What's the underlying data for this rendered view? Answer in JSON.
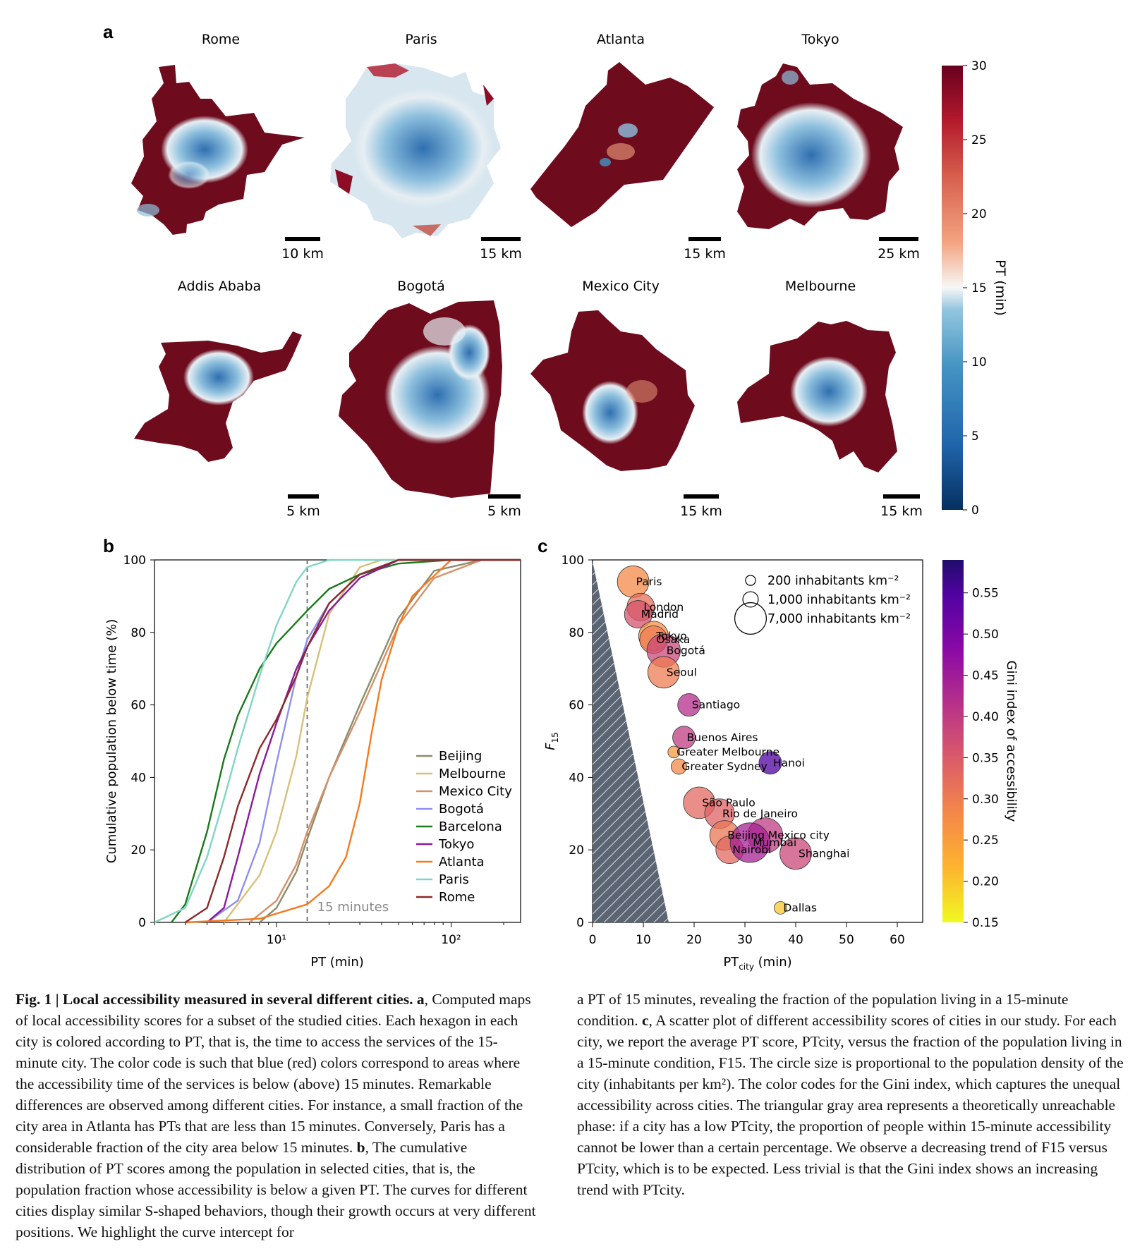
{
  "panel_labels": {
    "a": "a",
    "b": "b",
    "c": "c"
  },
  "panel_a": {
    "cities": [
      {
        "name": "Rome",
        "scale": "10 km"
      },
      {
        "name": "Paris",
        "scale": "15 km"
      },
      {
        "name": "Atlanta",
        "scale": "15 km"
      },
      {
        "name": "Tokyo",
        "scale": "25 km"
      },
      {
        "name": "Addis Ababa",
        "scale": "5 km"
      },
      {
        "name": "Bogotá",
        "scale": "5 km"
      },
      {
        "name": "Mexico City",
        "scale": "15 km"
      },
      {
        "name": "Melbourne",
        "scale": "15 km"
      }
    ],
    "colorbar": {
      "label": "PT (min)",
      "ticks": [
        "0",
        "5",
        "10",
        "15",
        "20",
        "25",
        "30"
      ],
      "range": [
        0,
        30
      ]
    }
  },
  "chart_data": [
    {
      "type": "line",
      "xlabel": "PT (min)",
      "ylabel": "Cumulative population below time (%)",
      "x_scale": "log",
      "xlim": [
        2,
        250
      ],
      "ylim": [
        0,
        100
      ],
      "xticks": [
        "10¹",
        "10²"
      ],
      "yticks": [
        "0",
        "20",
        "40",
        "60",
        "80",
        "100"
      ],
      "marker_line": {
        "x": 15,
        "label": "15 minutes"
      },
      "legend_position": "center-right",
      "series": [
        {
          "name": "Beijing",
          "color": "#8c8c6e",
          "x": [
            8,
            10,
            13,
            15,
            20,
            30,
            50,
            80,
            150
          ],
          "y": [
            0,
            4,
            14,
            23,
            40,
            60,
            84,
            97,
            100
          ]
        },
        {
          "name": "Melbourne",
          "color": "#d6c07a",
          "x": [
            5,
            8,
            10,
            13,
            15,
            20,
            30,
            40
          ],
          "y": [
            0,
            13,
            25,
            46,
            62,
            85,
            98,
            100
          ]
        },
        {
          "name": "Mexico City",
          "color": "#d4916a",
          "x": [
            7,
            10,
            13,
            15,
            20,
            30,
            50,
            80,
            150
          ],
          "y": [
            0,
            6,
            16,
            25,
            40,
            58,
            82,
            95,
            100
          ]
        },
        {
          "name": "Bogotá",
          "color": "#8f8ff0",
          "x": [
            4,
            6,
            8,
            10,
            13,
            15,
            20,
            30,
            50
          ],
          "y": [
            0,
            6,
            22,
            44,
            68,
            78,
            88,
            96,
            100
          ]
        },
        {
          "name": "Barcelona",
          "color": "#1a7a1a",
          "x": [
            2.5,
            3,
            4,
            5,
            6,
            8,
            10,
            15,
            20,
            30,
            50,
            100
          ],
          "y": [
            0,
            5,
            25,
            45,
            57,
            70,
            77,
            86,
            92,
            96,
            99,
            100
          ]
        },
        {
          "name": "Tokyo",
          "color": "#8b1a9b",
          "x": [
            4,
            5,
            6,
            8,
            10,
            13,
            15,
            20,
            30,
            50
          ],
          "y": [
            0,
            4,
            18,
            41,
            55,
            70,
            76,
            86,
            95,
            100
          ]
        },
        {
          "name": "Atlanta",
          "color": "#f47a1f",
          "x": [
            3,
            8,
            15,
            20,
            25,
            30,
            35,
            40,
            50,
            60,
            100
          ],
          "y": [
            0,
            1,
            5,
            10,
            18,
            33,
            52,
            67,
            82,
            90,
            100
          ]
        },
        {
          "name": "Paris",
          "color": "#7fd6c2",
          "x": [
            2,
            3,
            4,
            5,
            6,
            8,
            10,
            13,
            15,
            20,
            30
          ],
          "y": [
            0,
            4,
            18,
            34,
            48,
            68,
            82,
            94,
            98,
            100,
            100
          ]
        },
        {
          "name": "Rome",
          "color": "#8a2a2a",
          "x": [
            3,
            4,
            5,
            6,
            8,
            10,
            13,
            15,
            20,
            30,
            50
          ],
          "y": [
            0,
            4,
            18,
            32,
            48,
            56,
            68,
            76,
            88,
            96,
            100
          ]
        }
      ]
    },
    {
      "type": "scatter",
      "xlabel": "PTcity (min)",
      "ylabel": "F15",
      "xlim": [
        0,
        65
      ],
      "ylim": [
        0,
        100
      ],
      "xticks": [
        "0",
        "10",
        "20",
        "30",
        "40",
        "50",
        "60"
      ],
      "yticks": [
        "0",
        "20",
        "40",
        "60",
        "80",
        "100"
      ],
      "size_legend": [
        {
          "label": "200 inhabitants km⁻²",
          "density": 200
        },
        {
          "label": "1,000 inhabitants km⁻²",
          "density": 1000
        },
        {
          "label": "7,000 inhabitants km⁻²",
          "density": 7000
        }
      ],
      "colorbar": {
        "label": "Gini index of accessibility",
        "ticks": [
          "0.15",
          "0.20",
          "0.25",
          "0.30",
          "0.35",
          "0.40",
          "0.45",
          "0.50",
          "0.55"
        ],
        "range": [
          0.15,
          0.59
        ]
      },
      "points": [
        {
          "label": "Paris",
          "x": 8,
          "y": 94,
          "density": 7000,
          "gini": 0.28
        },
        {
          "label": "London",
          "x": 9.5,
          "y": 87,
          "density": 5000,
          "gini": 0.32
        },
        {
          "label": "Madrid",
          "x": 9,
          "y": 85,
          "density": 5000,
          "gini": 0.36
        },
        {
          "label": "Tokyo",
          "x": 12,
          "y": 79,
          "density": 6000,
          "gini": 0.27
        },
        {
          "label": "Osaka",
          "x": 12,
          "y": 78,
          "density": 5000,
          "gini": 0.3
        },
        {
          "label": "Bogotá",
          "x": 14,
          "y": 75,
          "density": 8000,
          "gini": 0.38
        },
        {
          "label": "Seoul",
          "x": 14,
          "y": 69,
          "density": 7000,
          "gini": 0.3
        },
        {
          "label": "Santiago",
          "x": 19,
          "y": 60,
          "density": 3000,
          "gini": 0.42
        },
        {
          "label": "Buenos Aires",
          "x": 18,
          "y": 51,
          "density": 3000,
          "gini": 0.4
        },
        {
          "label": "Greater Melbourne",
          "x": 16,
          "y": 47,
          "density": 400,
          "gini": 0.26
        },
        {
          "label": "Hanoi",
          "x": 35,
          "y": 44,
          "density": 3000,
          "gini": 0.55
        },
        {
          "label": "Greater Sydney",
          "x": 17,
          "y": 43,
          "density": 1000,
          "gini": 0.28
        },
        {
          "label": "São Paulo",
          "x": 21,
          "y": 33,
          "density": 7000,
          "gini": 0.33
        },
        {
          "label": "Rio de Janeiro",
          "x": 25,
          "y": 30,
          "density": 6000,
          "gini": 0.34
        },
        {
          "label": "Mexico city",
          "x": 34,
          "y": 24,
          "density": 9000,
          "gini": 0.4
        },
        {
          "label": "Beijing",
          "x": 26,
          "y": 24,
          "density": 6000,
          "gini": 0.31
        },
        {
          "label": "Nairobi",
          "x": 27,
          "y": 20,
          "density": 5000,
          "gini": 0.33
        },
        {
          "label": "Mumbai",
          "x": 31,
          "y": 22,
          "density": 12000,
          "gini": 0.44
        },
        {
          "label": "Shanghai",
          "x": 40,
          "y": 19,
          "density": 7000,
          "gini": 0.38
        },
        {
          "label": "Dallas",
          "x": 37,
          "y": 4,
          "density": 500,
          "gini": 0.2
        }
      ]
    }
  ],
  "caption": {
    "left": [
      {
        "b": "Fig. 1 | Local accessibility measured in several different cities. a",
        "t": ", Computed maps of local accessibility scores for a subset of the studied cities. Each hexagon in each city is colored according to PT, that is, the time to access the services of the 15-minute city. The color code is such that blue (red) colors correspond to areas where the accessibility time of the services is below (above) 15 minutes. Remarkable differences are observed among different cities. For instance, a small fraction of the city area in Atlanta has PTs that are less than 15 minutes. Conversely, Paris has a considerable fraction of the city area below 15 minutes. "
      },
      {
        "b": "b",
        "t": ", The cumulative distribution of PT scores among the population in selected cities, that is, the population fraction whose accessibility is below a given PT. The curves for different cities display similar S-shaped behaviors, though their growth occurs at very different positions. We highlight the curve intercept for"
      }
    ],
    "right": [
      {
        "b": "",
        "t": "a PT of 15 minutes, revealing the fraction of the population living in a 15-minute condition. "
      },
      {
        "b": "c",
        "t": ", A scatter plot of different accessibility scores of cities in our study. For each city, we report the average PT score, PTcity, versus the fraction of the population living in a 15-minute condition, F15. The circle size is proportional to the population density of the city (inhabitants per km²). The color codes for the Gini index, which captures the unequal accessibility across cities. The triangular gray area represents a theoretically unreachable phase: if a city has a low PTcity, the proportion of people within 15-minute accessibility cannot be lower than a certain percentage. We observe a decreasing trend of F15 versus PTcity, which is to be expected. Less trivial is that the Gini index shows an increasing trend with PTcity."
      }
    ]
  }
}
